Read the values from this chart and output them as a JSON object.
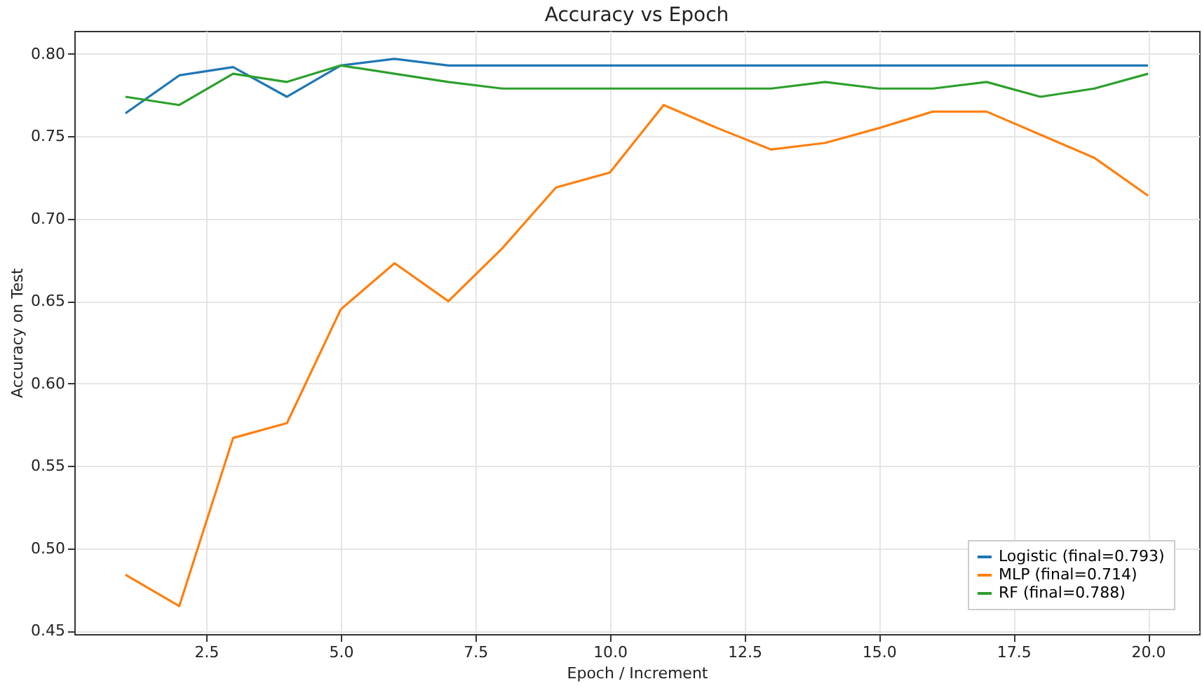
{
  "chart_data": {
    "type": "line",
    "title": "Accuracy vs Epoch",
    "xlabel": "Epoch / Increment",
    "ylabel": "Accuracy on Test",
    "x": [
      1,
      2,
      3,
      4,
      5,
      6,
      7,
      8,
      9,
      10,
      11,
      12,
      13,
      14,
      15,
      16,
      17,
      18,
      19,
      20
    ],
    "series": [
      {
        "name": "Logistic (final=0.793)",
        "color": "#1f77b4",
        "values": [
          0.764,
          0.787,
          0.792,
          0.774,
          0.793,
          0.797,
          0.793,
          0.793,
          0.793,
          0.793,
          0.793,
          0.793,
          0.793,
          0.793,
          0.793,
          0.793,
          0.793,
          0.793,
          0.793,
          0.793
        ]
      },
      {
        "name": "MLP (final=0.714)",
        "color": "#ff7f0e",
        "values": [
          0.484,
          0.465,
          0.567,
          0.576,
          0.645,
          0.673,
          0.65,
          0.682,
          0.719,
          0.728,
          0.769,
          0.755,
          0.742,
          0.746,
          0.755,
          0.765,
          0.765,
          0.751,
          0.737,
          0.714
        ]
      },
      {
        "name": "RF (final=0.788)",
        "color": "#2ca02c",
        "values": [
          0.774,
          0.769,
          0.788,
          0.783,
          0.793,
          0.788,
          0.783,
          0.779,
          0.779,
          0.779,
          0.779,
          0.779,
          0.779,
          0.783,
          0.779,
          0.779,
          0.783,
          0.774,
          0.779,
          0.788
        ]
      }
    ],
    "xlim": [
      0.05,
      20.95
    ],
    "xticks": [
      {
        "value": 2.5,
        "label": "2.5"
      },
      {
        "value": 5,
        "label": "5.0"
      },
      {
        "value": 7.5,
        "label": "7.5"
      },
      {
        "value": 10,
        "label": "10.0"
      },
      {
        "value": 12.5,
        "label": "12.5"
      },
      {
        "value": 15,
        "label": "15.0"
      },
      {
        "value": 17.5,
        "label": "17.5"
      },
      {
        "value": 20,
        "label": "20.0"
      }
    ],
    "ylim": [
      0.448,
      0.814
    ],
    "yticks": [
      {
        "value": 0.45,
        "label": "0.45"
      },
      {
        "value": 0.5,
        "label": "0.50"
      },
      {
        "value": 0.55,
        "label": "0.55"
      },
      {
        "value": 0.6,
        "label": "0.60"
      },
      {
        "value": 0.65,
        "label": "0.65"
      },
      {
        "value": 0.7,
        "label": "0.70"
      },
      {
        "value": 0.75,
        "label": "0.75"
      },
      {
        "value": 0.8,
        "label": "0.80"
      }
    ],
    "grid": true,
    "legend": "bottom right",
    "line_style": "solid",
    "marker": "none"
  }
}
